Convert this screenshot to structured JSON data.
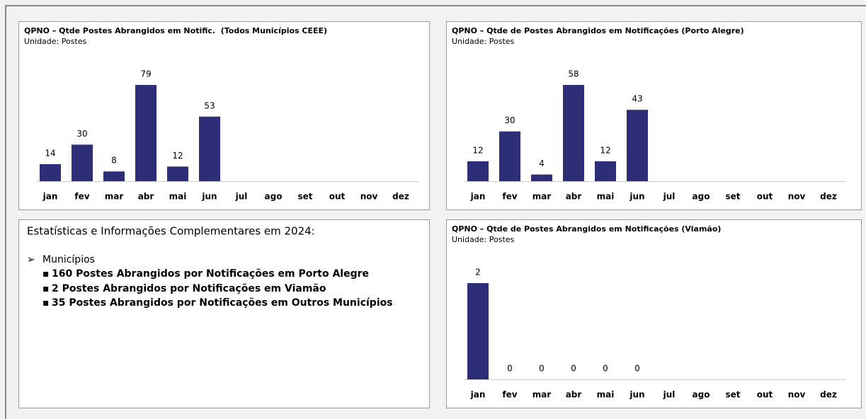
{
  "chart_data": [
    {
      "type": "bar",
      "title": "QPNO – Qtde Postes Abrangidos em Notific.  (Todos Municípios CEEE)",
      "subtitle": "Unidade: Postes",
      "categories": [
        "jan",
        "fev",
        "mar",
        "abr",
        "mai",
        "jun",
        "jul",
        "ago",
        "set",
        "out",
        "nov",
        "dez"
      ],
      "values": [
        14,
        30,
        8,
        79,
        12,
        53,
        null,
        null,
        null,
        null,
        null,
        null
      ],
      "color": "#2e2d78"
    },
    {
      "type": "bar",
      "title": "QPNO – Qtde de Postes Abrangidos em Notificações (Porto Alegre)",
      "subtitle": "Unidade: Postes",
      "categories": [
        "jan",
        "fev",
        "mar",
        "abr",
        "mai",
        "jun",
        "jul",
        "ago",
        "set",
        "out",
        "nov",
        "dez"
      ],
      "values": [
        12,
        30,
        4,
        58,
        12,
        43,
        null,
        null,
        null,
        null,
        null,
        null
      ],
      "color": "#2e2d78"
    },
    {
      "type": "bar",
      "title": "QPNO – Qtde de Postes Abrangidos em Notificações (Viamão)",
      "subtitle": "Unidade: Postes",
      "categories": [
        "jan",
        "fev",
        "mar",
        "abr",
        "mai",
        "jun",
        "jul",
        "ago",
        "set",
        "out",
        "nov",
        "dez"
      ],
      "values": [
        2,
        0,
        0,
        0,
        0,
        0,
        null,
        null,
        null,
        null,
        null,
        null
      ],
      "color": "#2e2d78"
    }
  ],
  "info": {
    "title": "Estatísticas e Informações Complementares em 2024:",
    "heading": "Municípios",
    "items": [
      "160 Postes Abrangidos por Notificações em Porto Alegre",
      "2 Postes Abrangidos por Notificações em Viamão",
      "35 Postes Abrangidos por Notificações em Outros Municípios"
    ]
  }
}
